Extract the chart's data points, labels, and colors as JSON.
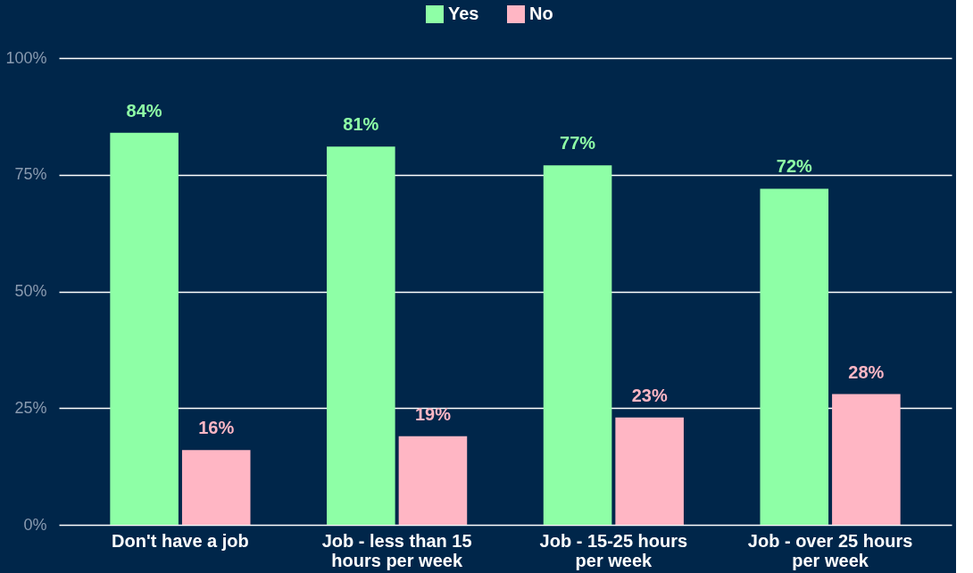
{
  "chart_data": {
    "type": "bar",
    "categories": [
      "Don't have a job",
      "Job - less than 15 hours per week",
      "Job - 15-25 hours per week",
      "Job - over 25 hours per week"
    ],
    "series": [
      {
        "name": "Yes",
        "color": "#8effa6",
        "values": [
          84,
          81,
          77,
          72
        ],
        "value_labels": [
          "84%",
          "81%",
          "77%",
          "72%"
        ]
      },
      {
        "name": "No",
        "color": "#ffb6c4",
        "values": [
          16,
          19,
          23,
          28
        ],
        "value_labels": [
          "16%",
          "19%",
          "23%",
          "28%"
        ]
      }
    ],
    "ylim": [
      0,
      100
    ],
    "yticks": [
      {
        "value": 0,
        "label": "0%"
      },
      {
        "value": 25,
        "label": "25%"
      },
      {
        "value": 50,
        "label": "50%"
      },
      {
        "value": 75,
        "label": "75%"
      },
      {
        "value": 100,
        "label": "100%"
      }
    ],
    "grid": "y",
    "legend": "top"
  }
}
